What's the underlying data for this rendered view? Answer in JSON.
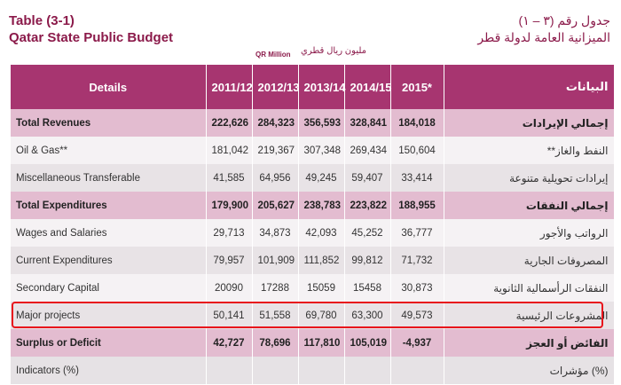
{
  "title": {
    "en_line1": "Table (3-1)",
    "en_line2": "Qatar State Public Budget",
    "ar_line1": "جدول رقم (٣ – ١)",
    "ar_line2": "الميزانية العامة لدولة قطر"
  },
  "units": {
    "en": "QR Million",
    "ar": "مليون ريال قطري"
  },
  "headers": {
    "details": "Details",
    "years": [
      "2011/12",
      "2012/13",
      "2013/14",
      "2014/15",
      "2015*"
    ],
    "ar": "البيانات"
  },
  "rows": [
    {
      "en": "Total Revenues",
      "values": [
        "222,626",
        "284,323",
        "356,593",
        "328,841",
        "184,018"
      ],
      "ar": "إجمالي الإيرادات",
      "style": "bold"
    },
    {
      "en": "Oil & Gas**",
      "values": [
        "181,042",
        "219,367",
        "307,348",
        "269,434",
        "150,604"
      ],
      "ar": "النفط والغاز**",
      "style": "odd"
    },
    {
      "en": "Miscellaneous Transferable",
      "values": [
        "41,585",
        "64,956",
        "49,245",
        "59,407",
        "33,414"
      ],
      "ar": "إيرادات تحويلية متنوعة",
      "style": "even"
    },
    {
      "en": "Total Expenditures",
      "values": [
        "179,900",
        "205,627",
        "238,783",
        "223,822",
        "188,955"
      ],
      "ar": "إجمالي النفقات",
      "style": "bold"
    },
    {
      "en": "Wages and Salaries",
      "values": [
        "29,713",
        "34,873",
        "42,093",
        "45,252",
        "36,777"
      ],
      "ar": "الرواتب والأجور",
      "style": "odd"
    },
    {
      "en": "Current Expenditures",
      "values": [
        "79,957",
        "101,909",
        "111,852",
        "99,812",
        "71,732"
      ],
      "ar": "المصروفات الجارية",
      "style": "even"
    },
    {
      "en": "Secondary Capital",
      "values": [
        "20090",
        "17288",
        "15059",
        "15458",
        "30,873"
      ],
      "ar": "النفقات الرأسمالية الثانوية",
      "style": "odd"
    },
    {
      "en": "Major projects",
      "values": [
        "50,141",
        "51,558",
        "69,780",
        "63,300",
        "49,573"
      ],
      "ar": "المشروعات الرئيسية",
      "style": "even"
    },
    {
      "en": "Surplus or Deficit",
      "values": [
        "42,727",
        "78,696",
        "117,810",
        "105,019",
        "-4,937"
      ],
      "ar": "الفائض أو العجز",
      "style": "bold"
    },
    {
      "en": "Indicators (%)",
      "values": [
        "",
        "",
        "",
        "",
        ""
      ],
      "ar": "(%) مؤشرات",
      "style": "ind"
    }
  ],
  "highlight_color": "#e8141c"
}
